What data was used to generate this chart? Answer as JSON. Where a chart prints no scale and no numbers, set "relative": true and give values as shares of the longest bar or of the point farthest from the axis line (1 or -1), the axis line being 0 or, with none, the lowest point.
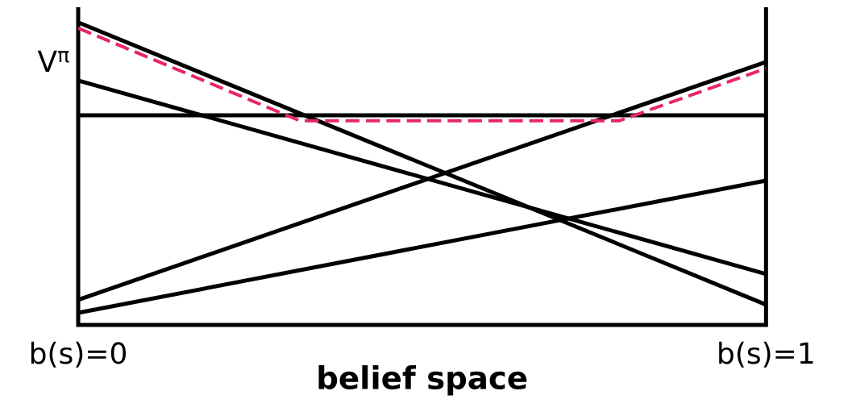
{
  "chart_data": {
    "type": "line",
    "relative": true,
    "xlabel": "belief space",
    "ylabel": "V$^{π}$",
    "xlim": [
      0,
      1
    ],
    "xticks": [
      {
        "value": 0,
        "label": "b(s)=0"
      },
      {
        "value": 1,
        "label": "b(s)=1"
      }
    ],
    "line_style": "solid",
    "marker": "none",
    "series": [
      {
        "color": "#000000",
        "x": [
          0,
          1
        ],
        "values": [
          1,
          0.067
        ]
      },
      {
        "color": "#000000",
        "x": [
          0,
          1
        ],
        "values": [
          0.808,
          0.168
        ]
      },
      {
        "color": "#000000",
        "x": [
          0,
          1
        ],
        "values": [
          0.693,
          0.693
        ]
      },
      {
        "color": "#000000",
        "x": [
          0,
          1
        ],
        "values": [
          0.083,
          0.869
        ]
      },
      {
        "color": "#000000",
        "x": [
          0,
          1
        ],
        "values": [
          0.04,
          0.477
        ]
      },
      {
        "color": "#e8246e",
        "line_style": "dashed",
        "x": [
          0,
          0.322,
          0.787,
          1
        ],
        "values": [
          0.981,
          0.675,
          0.675,
          0.848
        ]
      }
    ]
  }
}
